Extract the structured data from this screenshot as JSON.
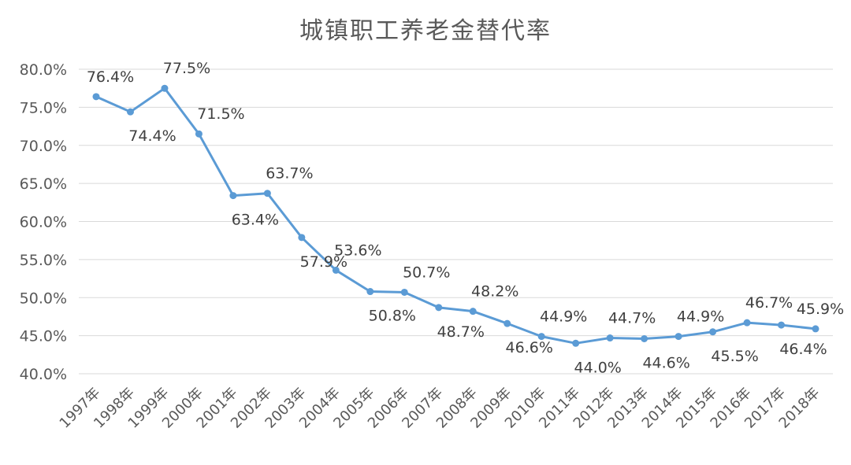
{
  "chart_data": {
    "type": "line",
    "title": "城镇职工养老金替代率",
    "xlabel": "",
    "ylabel": "",
    "x": [
      "1997年",
      "1998年",
      "1999年",
      "2000年",
      "2001年",
      "2002年",
      "2003年",
      "2004年",
      "2005年",
      "2006年",
      "2007年",
      "2008年",
      "2009年",
      "2010年",
      "2011年",
      "2012年",
      "2013年",
      "2014年",
      "2015年",
      "2016年",
      "2017年",
      "2018年"
    ],
    "series": [
      {
        "values": [
          76.4,
          74.4,
          77.5,
          71.5,
          63.4,
          63.7,
          57.9,
          53.6,
          50.8,
          50.7,
          48.7,
          48.2,
          46.6,
          44.9,
          44.0,
          44.7,
          44.6,
          44.9,
          45.5,
          46.7,
          46.4,
          45.9
        ],
        "labels": [
          "76.4%",
          "74.4%",
          "77.5%",
          "71.5%",
          "63.4%",
          "63.7%",
          "57.9%",
          "53.6%",
          "50.8%",
          "50.7%",
          "48.7%",
          "48.2%",
          "46.6%",
          "44.9%",
          "44.0%",
          "44.7%",
          "44.6%",
          "44.9%",
          "45.5%",
          "46.7%",
          "46.4%",
          "45.9%"
        ],
        "color": "#5b9bd5"
      }
    ],
    "ylim": [
      40,
      80
    ],
    "yticks": [
      "40.0%",
      "45.0%",
      "50.0%",
      "55.0%",
      "60.0%",
      "65.0%",
      "70.0%",
      "75.0%",
      "80.0%"
    ],
    "grid": true,
    "legend": "none"
  }
}
